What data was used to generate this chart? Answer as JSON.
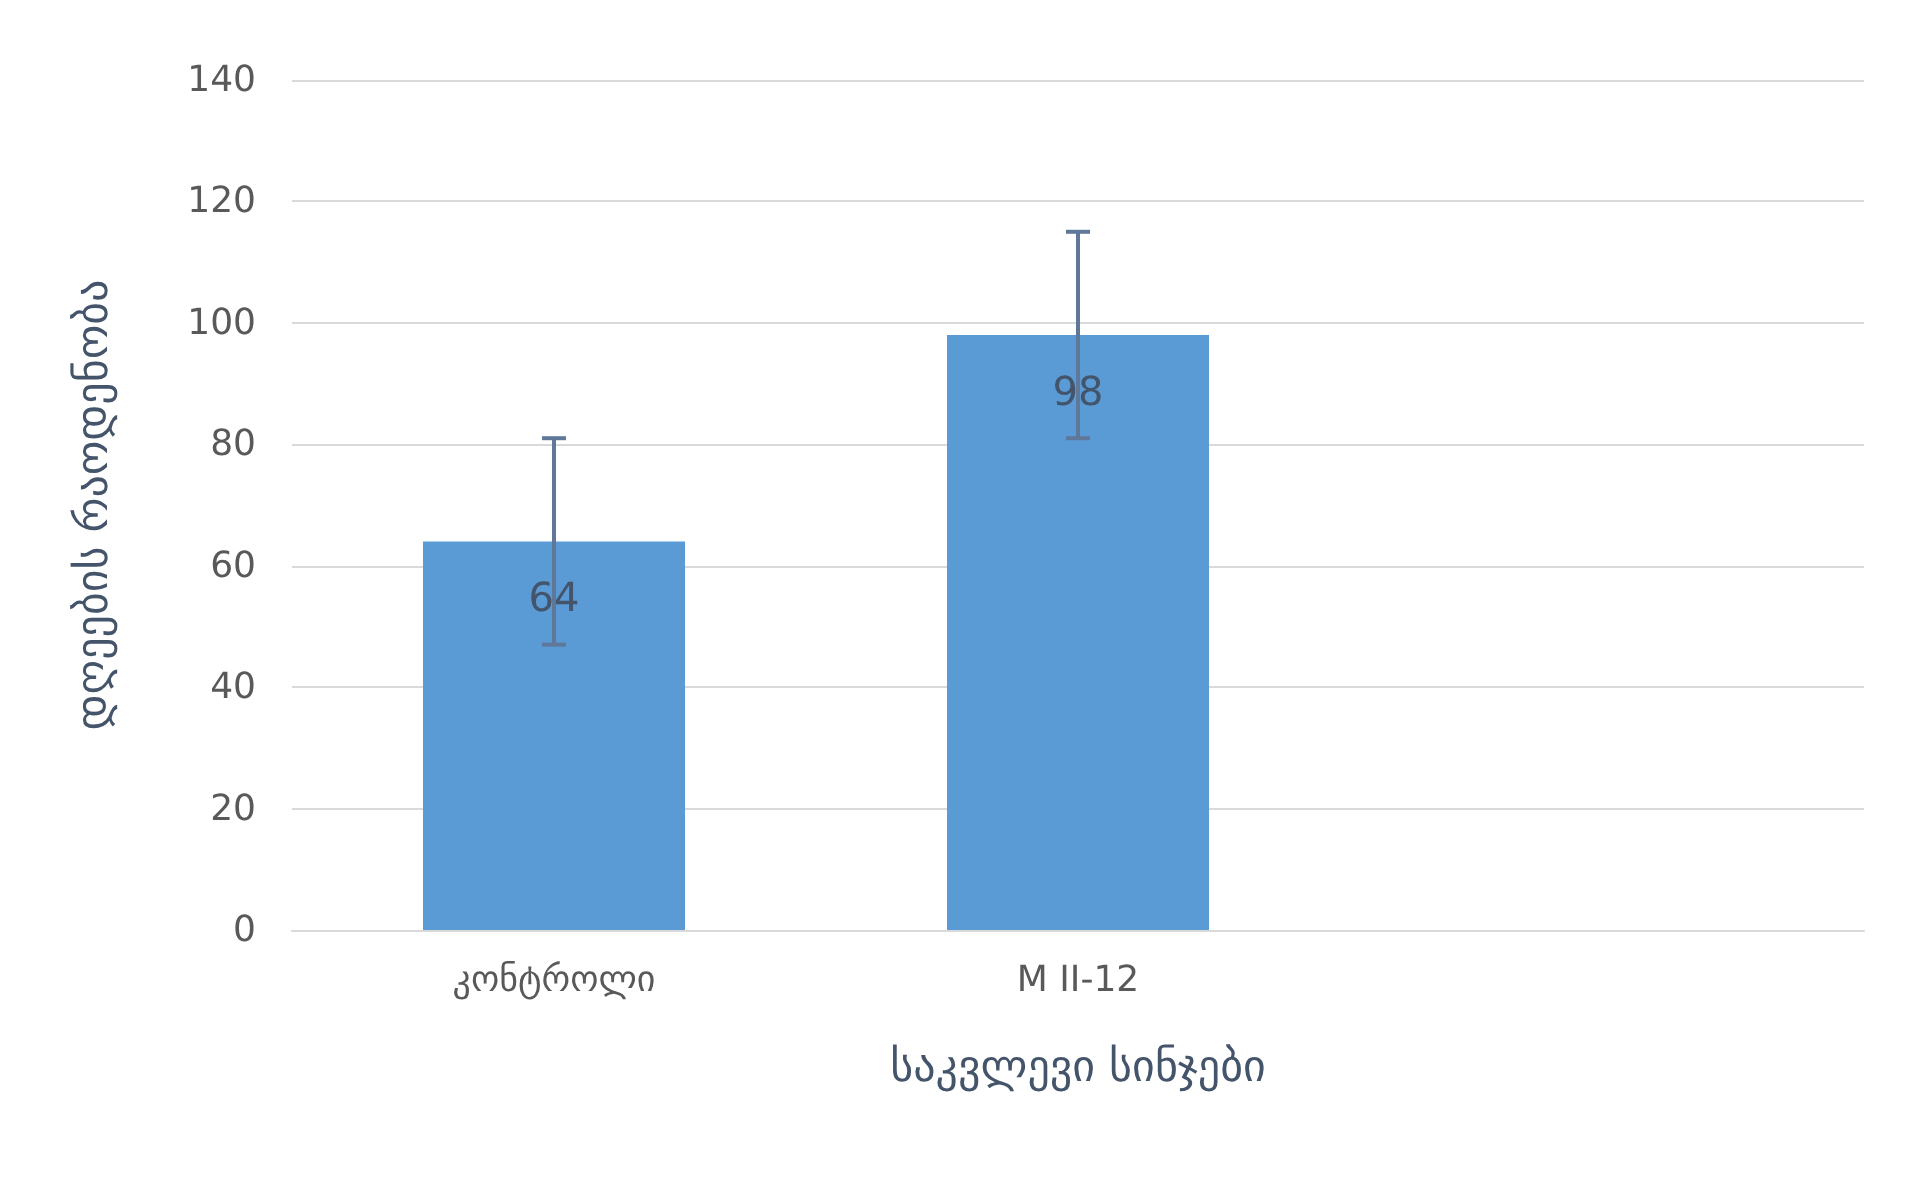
{
  "chart_data": {
    "type": "bar",
    "xlabel": "საკვლევი სინჯები",
    "ylabel": "დღეების რაოდენობა",
    "categories": [
      "კონტროლი",
      "M II-12",
      null
    ],
    "values": [
      64,
      98,
      null
    ],
    "errors": [
      17,
      17,
      null
    ],
    "color": "#5b9bd5",
    "ylim": [
      0,
      140
    ],
    "yticks": [
      0,
      20,
      40,
      60,
      80,
      100,
      120,
      140
    ],
    "grid": "y",
    "data_labels": true
  }
}
